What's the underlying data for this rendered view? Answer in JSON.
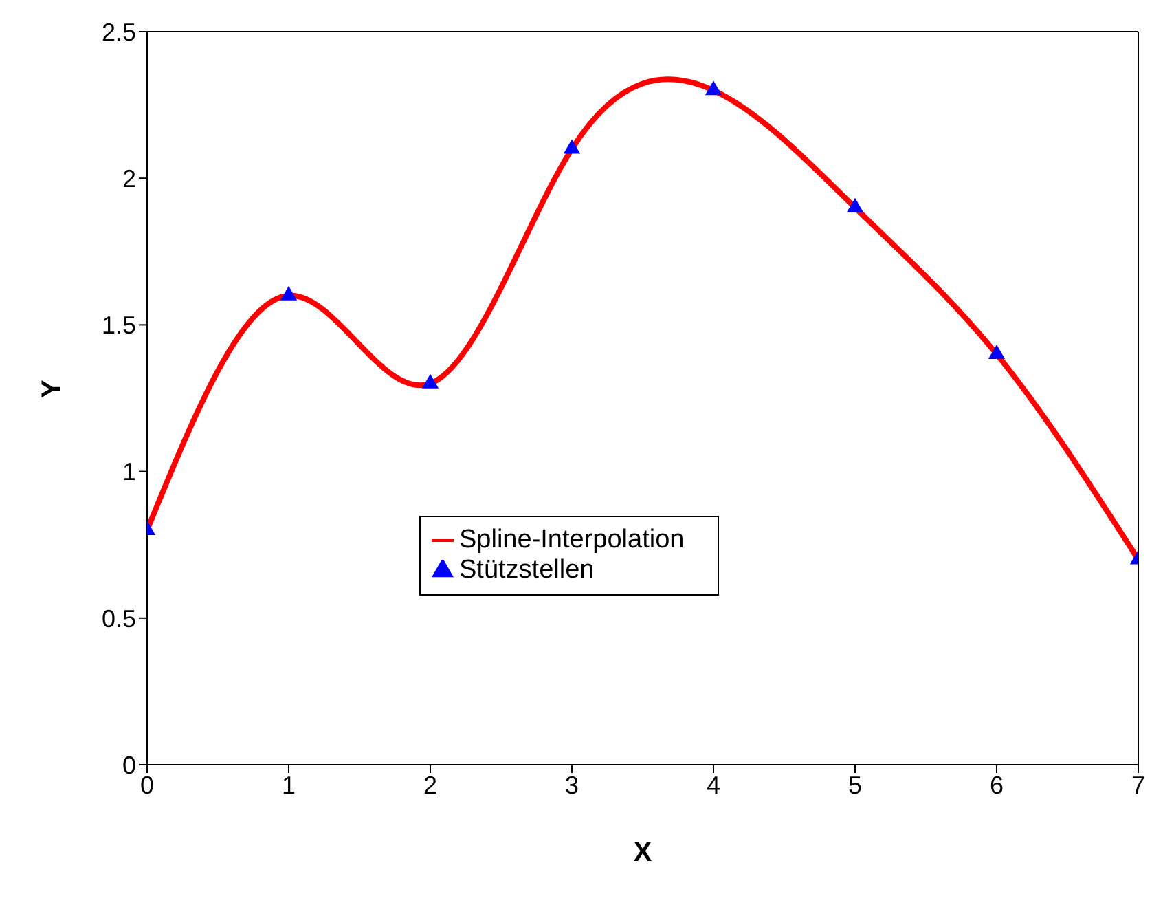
{
  "chart_data": {
    "type": "line",
    "xlabel": "X",
    "ylabel": "Y",
    "x": [
      0,
      1,
      2,
      3,
      4,
      5,
      6,
      7
    ],
    "series": [
      {
        "name": "Spline-Interpolation",
        "color": "#ff0000",
        "marker": "none",
        "values": [
          0.8,
          1.6,
          1.3,
          2.1,
          2.3,
          1.9,
          1.4,
          0.7
        ]
      },
      {
        "name": "Stützstellen",
        "type": "scatter",
        "color": "#0000ff",
        "marker": "triangle",
        "values": [
          0.8,
          1.6,
          1.3,
          2.1,
          2.3,
          1.9,
          1.4,
          0.7
        ]
      }
    ],
    "xlim": [
      0,
      7
    ],
    "xticks": [
      0,
      1,
      2,
      3,
      4,
      5,
      6,
      7
    ],
    "ylim": [
      0,
      2.5
    ],
    "yticks": [
      0,
      0.5,
      1,
      1.5,
      2,
      2.5
    ],
    "grid": false,
    "legend": "bottom"
  }
}
